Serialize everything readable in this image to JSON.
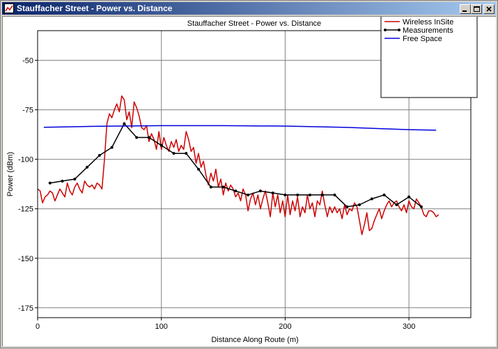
{
  "window": {
    "title": "Stauffacher Street - Power vs. Distance",
    "controls": {
      "minimize": "minimize",
      "maximize": "maximize",
      "close": "close"
    }
  },
  "chart_data": {
    "type": "line",
    "title": "Stauffacher Street - Power vs. Distance",
    "xlabel": "Distance Along Route (m)",
    "ylabel": "Power (dBm)",
    "xlim": [
      0,
      350
    ],
    "ylim": [
      -180,
      -35
    ],
    "xticks": [
      0,
      100,
      200,
      300
    ],
    "yticks": [
      -50,
      -75,
      -100,
      -125,
      -150,
      -175
    ],
    "grid": true,
    "legend_position": "top-right",
    "series": [
      {
        "name": "Wireless InSite",
        "color": "#cc0000",
        "marker": "none",
        "x": [
          0,
          2,
          4,
          6,
          8,
          10,
          12,
          14,
          16,
          18,
          20,
          22,
          24,
          26,
          28,
          30,
          32,
          34,
          36,
          38,
          40,
          42,
          44,
          46,
          48,
          50,
          52,
          54,
          56,
          58,
          60,
          62,
          64,
          66,
          68,
          70,
          72,
          74,
          76,
          78,
          80,
          82,
          84,
          86,
          88,
          90,
          92,
          94,
          96,
          98,
          100,
          102,
          104,
          106,
          108,
          110,
          112,
          114,
          116,
          118,
          120,
          122,
          124,
          126,
          128,
          130,
          132,
          134,
          136,
          138,
          140,
          142,
          144,
          146,
          148,
          150,
          152,
          154,
          156,
          158,
          160,
          162,
          164,
          166,
          168,
          170,
          172,
          174,
          176,
          178,
          180,
          182,
          184,
          186,
          188,
          190,
          192,
          194,
          196,
          198,
          200,
          202,
          204,
          206,
          208,
          210,
          212,
          214,
          216,
          218,
          220,
          222,
          224,
          226,
          228,
          230,
          232,
          234,
          236,
          238,
          240,
          242,
          244,
          246,
          248,
          250,
          252,
          254,
          256,
          258,
          260,
          262,
          264,
          266,
          268,
          270,
          272,
          274,
          276,
          278,
          280,
          282,
          284,
          286,
          288,
          290,
          292,
          294,
          296,
          298,
          300,
          302,
          304,
          306,
          308,
          310,
          312,
          314,
          316,
          318,
          320,
          322,
          324
        ],
        "y": [
          -115,
          -116,
          -122,
          -119,
          -118,
          -116,
          -117,
          -121,
          -118,
          -115,
          -117,
          -119,
          -112,
          -116,
          -118,
          -114,
          -112,
          -115,
          -117,
          -111,
          -113,
          -114,
          -113,
          -115,
          -112,
          -113,
          -115,
          -100,
          -82,
          -77,
          -79,
          -75,
          -72,
          -76,
          -68,
          -70,
          -80,
          -76,
          -84,
          -71,
          -74,
          -78,
          -84,
          -85,
          -83,
          -91,
          -87,
          -90,
          -95,
          -86,
          -95,
          -89,
          -93,
          -96,
          -91,
          -94,
          -90,
          -96,
          -93,
          -95,
          -86,
          -90,
          -96,
          -94,
          -102,
          -97,
          -104,
          -101,
          -108,
          -113,
          -107,
          -111,
          -105,
          -114,
          -110,
          -118,
          -112,
          -116,
          -113,
          -115,
          -119,
          -117,
          -121,
          -115,
          -118,
          -126,
          -120,
          -117,
          -123,
          -118,
          -125,
          -120,
          -116,
          -122,
          -129,
          -117,
          -124,
          -118,
          -127,
          -121,
          -129,
          -118,
          -128,
          -121,
          -126,
          -119,
          -129,
          -124,
          -127,
          -118,
          -125,
          -122,
          -129,
          -121,
          -123,
          -116,
          -123,
          -129,
          -124,
          -127,
          -124,
          -127,
          -125,
          -130,
          -123,
          -128,
          -125,
          -126,
          -122,
          -124,
          -131,
          -138,
          -133,
          -127,
          -136,
          -135,
          -131,
          -128,
          -125,
          -130,
          -126,
          -123,
          -121,
          -124,
          -122,
          -121,
          -124,
          -126,
          -123,
          -127,
          -121,
          -124,
          -125,
          -120,
          -122,
          -124,
          -128,
          -129,
          -126,
          -126,
          -127,
          -129,
          -128
        ]
      },
      {
        "name": "Measurements",
        "color": "#000000",
        "marker": "dot",
        "x": [
          10,
          20,
          30,
          40,
          50,
          60,
          70,
          80,
          90,
          100,
          110,
          120,
          130,
          140,
          150,
          160,
          170,
          180,
          190,
          200,
          210,
          220,
          230,
          240,
          250,
          260,
          270,
          280,
          290,
          300,
          310
        ],
        "y": [
          -112,
          -111,
          -110,
          -104,
          -98,
          -94,
          -82,
          -89,
          -89,
          -93,
          -97,
          -97,
          -105,
          -114,
          -114,
          -116,
          -118,
          -116,
          -117,
          -118,
          -118,
          -118,
          -118,
          -118,
          -124,
          -123,
          -120,
          -118,
          -123,
          -119,
          -124
        ]
      },
      {
        "name": "Free Space",
        "color": "#0000dd",
        "marker": "none",
        "x": [
          5,
          50,
          100,
          150,
          200,
          250,
          280,
          300,
          322
        ],
        "y": [
          -83.8,
          -83.3,
          -83.0,
          -83.0,
          -83.2,
          -83.9,
          -84.6,
          -85.0,
          -85.3
        ]
      }
    ]
  }
}
